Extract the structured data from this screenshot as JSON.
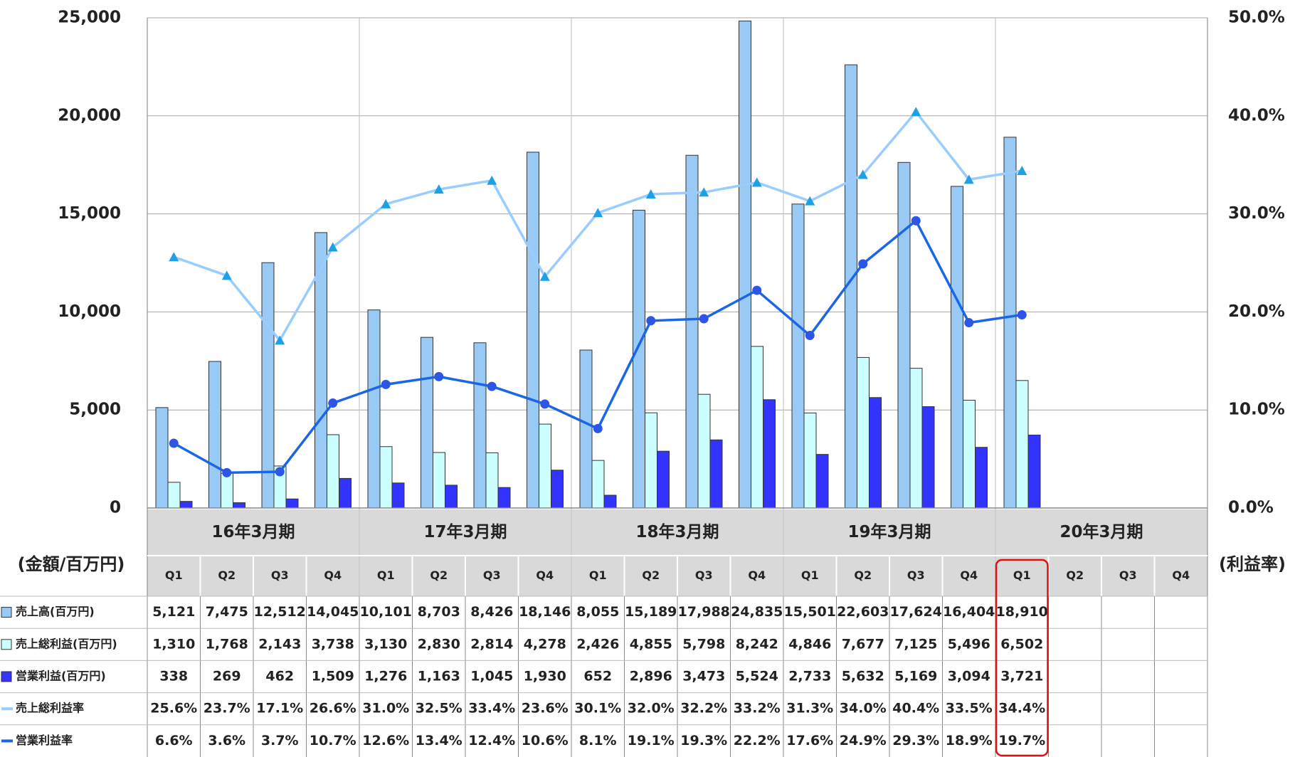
{
  "chart_data": {
    "type": "bar",
    "y_label": "(金額/百万円)",
    "y2_label": "(利益率)",
    "periods": [
      "16年3月期",
      "17年3月期",
      "18年3月期",
      "19年3月期",
      "20年3月期"
    ],
    "categories": [
      "Q1",
      "Q2",
      "Q3",
      "Q4",
      "Q1",
      "Q2",
      "Q3",
      "Q4",
      "Q1",
      "Q2",
      "Q3",
      "Q4",
      "Q1",
      "Q2",
      "Q3",
      "Q4",
      "Q1",
      "Q2",
      "Q3",
      "Q4"
    ],
    "ylim": [
      0,
      25000
    ],
    "yticks": [
      0,
      {
        "value": 5000,
        "label": "5,000"
      },
      {
        "value": 10000,
        "label": "10,000"
      },
      {
        "value": 15000,
        "label": "15,000"
      },
      {
        "value": 20000,
        "label": "20,000"
      },
      {
        "value": 25000,
        "label": "25,000"
      }
    ],
    "y2lim": [
      0,
      50
    ],
    "y2ticks": [
      {
        "value": 0,
        "label": "0.0%"
      },
      {
        "value": 10,
        "label": "10.0%"
      },
      {
        "value": 20,
        "label": "20.0%"
      },
      {
        "value": 30,
        "label": "30.0%"
      },
      {
        "value": 40,
        "label": "40.0%"
      },
      {
        "value": 50,
        "label": "50.0%"
      }
    ],
    "grid": true,
    "series": [
      {
        "name": "売上高(百万円)",
        "type": "bar",
        "color": "#99c9f5",
        "values": [
          5121,
          7475,
          12512,
          14045,
          10101,
          8703,
          8426,
          18146,
          8055,
          15189,
          17988,
          24835,
          15501,
          22603,
          17624,
          16404,
          18910,
          null,
          null,
          null
        ],
        "value_labels": [
          "5,121",
          "7,475",
          "12,512",
          "14,045",
          "10,101",
          "8,703",
          "8,426",
          "18,146",
          "8,055",
          "15,189",
          "17,988",
          "24,835",
          "15,501",
          "22,603",
          "17,624",
          "16,404",
          "18,910",
          null,
          null,
          null
        ]
      },
      {
        "name": "売上総利益(百万円)",
        "type": "bar",
        "color": "#ccffff",
        "values": [
          1310,
          1768,
          2143,
          3738,
          3130,
          2830,
          2814,
          4278,
          2426,
          4855,
          5798,
          8242,
          4846,
          7677,
          7125,
          5496,
          6502,
          null,
          null,
          null
        ],
        "value_labels": [
          "1,310",
          "1,768",
          "2,143",
          "3,738",
          "3,130",
          "2,830",
          "2,814",
          "4,278",
          "2,426",
          "4,855",
          "5,798",
          "8,242",
          "4,846",
          "7,677",
          "7,125",
          "5,496",
          "6,502",
          null,
          null,
          null
        ]
      },
      {
        "name": "営業利益(百万円)",
        "type": "bar",
        "color": "#3333ff",
        "values": [
          338,
          269,
          462,
          1509,
          1276,
          1163,
          1045,
          1930,
          652,
          2896,
          3473,
          5524,
          2733,
          5632,
          5169,
          3094,
          3721,
          null,
          null,
          null
        ],
        "value_labels": [
          "338",
          "269",
          "462",
          "1,509",
          "1,276",
          "1,163",
          "1,045",
          "1,930",
          "652",
          "2,896",
          "3,473",
          "5,524",
          "2,733",
          "5,632",
          "5,169",
          "3,094",
          "3,721",
          null,
          null,
          null
        ]
      },
      {
        "name": "売上総利益率",
        "type": "line",
        "axis": "y2",
        "color": "#99ccff",
        "marker_color": "#1ea0e6",
        "marker": "triangle",
        "values": [
          25.6,
          23.7,
          17.1,
          26.6,
          31.0,
          32.5,
          33.4,
          23.6,
          30.1,
          32.0,
          32.2,
          33.2,
          31.3,
          34.0,
          40.4,
          33.5,
          34.4,
          null,
          null,
          null
        ],
        "value_labels": [
          "25.6%",
          "23.7%",
          "17.1%",
          "26.6%",
          "31.0%",
          "32.5%",
          "33.4%",
          "23.6%",
          "30.1%",
          "32.0%",
          "32.2%",
          "33.2%",
          "31.3%",
          "34.0%",
          "40.4%",
          "33.5%",
          "34.4%",
          null,
          null,
          null
        ]
      },
      {
        "name": "営業利益率",
        "type": "line",
        "axis": "y2",
        "color": "#1a66e6",
        "marker_color": "#2d55e6",
        "marker": "circle",
        "values": [
          6.6,
          3.6,
          3.7,
          10.7,
          12.6,
          13.4,
          12.4,
          10.6,
          8.1,
          19.1,
          19.3,
          22.2,
          17.6,
          24.9,
          29.3,
          18.9,
          19.7,
          null,
          null,
          null
        ],
        "value_labels": [
          "6.6%",
          "3.6%",
          "3.7%",
          "10.7%",
          "12.6%",
          "13.4%",
          "12.4%",
          "10.6%",
          "8.1%",
          "19.1%",
          "19.3%",
          "22.2%",
          "17.6%",
          "24.9%",
          "29.3%",
          "18.9%",
          "19.7%",
          null,
          null,
          null
        ]
      }
    ]
  }
}
